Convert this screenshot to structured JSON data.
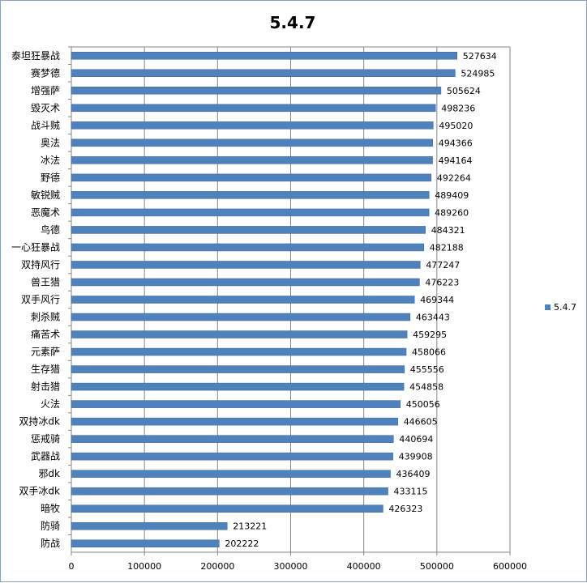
{
  "chart_data": {
    "type": "bar",
    "orientation": "horizontal",
    "title": "5.4.7",
    "categories": [
      "泰坦狂暴战",
      "赛梦德",
      "增强萨",
      "毁灭术",
      "战斗贼",
      "奥法",
      "冰法",
      "野德",
      "敏锐贼",
      "恶魔术",
      "鸟德",
      "一心狂暴战",
      "双持风行",
      "兽王猎",
      "双手风行",
      "刺杀贼",
      "痛苦术",
      "元素萨",
      "生存猎",
      "射击猎",
      "火法",
      "双持冰dk",
      "惩戒骑",
      "武器战",
      "邪dk",
      "双手冰dk",
      "暗牧",
      "防骑",
      "防战"
    ],
    "series": [
      {
        "name": "5.4.7",
        "color": "#4f81bd",
        "values": [
          527634,
          524985,
          505624,
          498236,
          495020,
          494366,
          494164,
          492264,
          489409,
          489260,
          484321,
          482188,
          477247,
          476223,
          469344,
          463443,
          459295,
          458066,
          455556,
          454858,
          450056,
          446605,
          440694,
          439908,
          436409,
          433115,
          426323,
          213221,
          202222
        ]
      }
    ],
    "xlim": [
      0,
      600000
    ],
    "xticks": [
      "0",
      "100000",
      "200000",
      "300000",
      "400000",
      "500000",
      "600000"
    ],
    "grid": true,
    "legend": "right"
  }
}
